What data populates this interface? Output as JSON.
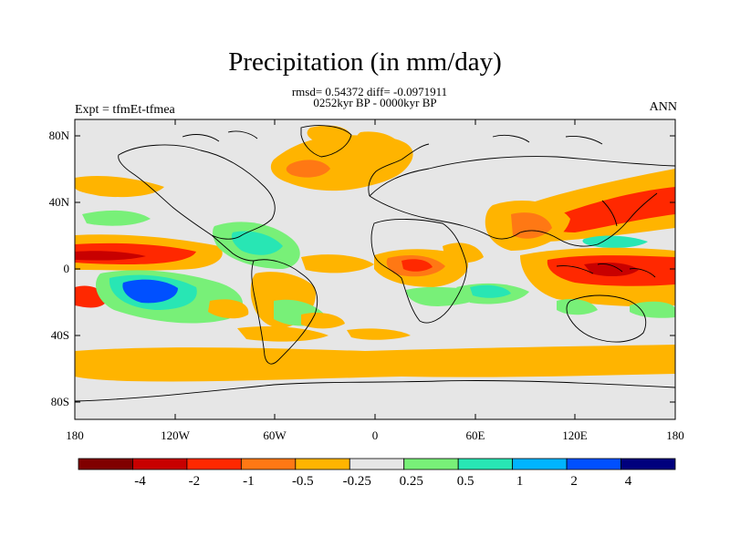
{
  "title": "Precipitation (in mm/day)",
  "stats": "rmsd= 0.54372 diff= -0.0971911",
  "period": "0252kyr BP - 0000kyr BP",
  "expt_label": "Expt = tfmEt-tfmea",
  "season": "ANN",
  "lat_ticks": [
    "80N",
    "40N",
    "0",
    "40S",
    "80S"
  ],
  "lon_ticks": [
    "180",
    "120W",
    "60W",
    "0",
    "60E",
    "120E",
    "180"
  ],
  "colorbar": {
    "labels": [
      "-4",
      "-2",
      "-1",
      "-0.5",
      "-0.25",
      "0.25",
      "0.5",
      "1",
      "2",
      "4"
    ],
    "colors": [
      "#800000",
      "#c80000",
      "#ff2800",
      "#ff7814",
      "#ffb400",
      "#e6e6e6",
      "#78f078",
      "#28e6b4",
      "#00b4ff",
      "#0050ff",
      "#00007d"
    ]
  }
}
